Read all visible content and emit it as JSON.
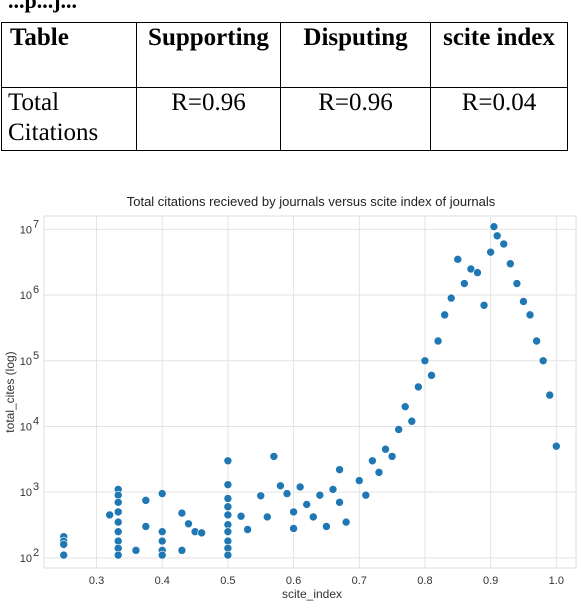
{
  "heading_fragment": "...p...j...",
  "table": {
    "headers": [
      "Table",
      "Supporting",
      "Disputing",
      "scite index"
    ],
    "rows": [
      {
        "label": "Total Citations",
        "supporting": "R=0.96",
        "disputing": "R=0.96",
        "scite_index": "R=0.04"
      }
    ]
  },
  "chart_data": {
    "type": "scatter",
    "title": "Total citations recieved by journals versus scite index of journals",
    "xlabel": "scite_index",
    "ylabel": "total_cites (log)",
    "xlim": [
      0.22,
      1.03
    ],
    "ylim": [
      70,
      16000000
    ],
    "yscale": "log",
    "grid": true,
    "x_ticks": [
      "0.3",
      "0.4",
      "0.5",
      "0.6",
      "0.7",
      "0.8",
      "0.9",
      "1.0"
    ],
    "y_ticks": [
      "10",
      "10",
      "10",
      "10",
      "10",
      "10"
    ],
    "y_tick_exponents": [
      "2",
      "3",
      "4",
      "5",
      "6",
      "7"
    ],
    "point_color": "#1f77b4",
    "points": [
      [
        0.25,
        210
      ],
      [
        0.25,
        180
      ],
      [
        0.25,
        160
      ],
      [
        0.25,
        110
      ],
      [
        0.32,
        450
      ],
      [
        0.333,
        1100
      ],
      [
        0.333,
        900
      ],
      [
        0.333,
        700
      ],
      [
        0.333,
        500
      ],
      [
        0.333,
        350
      ],
      [
        0.333,
        250
      ],
      [
        0.333,
        180
      ],
      [
        0.333,
        140
      ],
      [
        0.333,
        110
      ],
      [
        0.36,
        130
      ],
      [
        0.375,
        750
      ],
      [
        0.375,
        300
      ],
      [
        0.4,
        950
      ],
      [
        0.4,
        250
      ],
      [
        0.4,
        180
      ],
      [
        0.4,
        130
      ],
      [
        0.4,
        110
      ],
      [
        0.43,
        130
      ],
      [
        0.43,
        480
      ],
      [
        0.44,
        330
      ],
      [
        0.45,
        250
      ],
      [
        0.46,
        240
      ],
      [
        0.5,
        3000
      ],
      [
        0.5,
        1300
      ],
      [
        0.5,
        800
      ],
      [
        0.5,
        600
      ],
      [
        0.5,
        450
      ],
      [
        0.5,
        320
      ],
      [
        0.5,
        250
      ],
      [
        0.5,
        180
      ],
      [
        0.5,
        140
      ],
      [
        0.5,
        110
      ],
      [
        0.52,
        430
      ],
      [
        0.53,
        270
      ],
      [
        0.55,
        880
      ],
      [
        0.56,
        420
      ],
      [
        0.57,
        3500
      ],
      [
        0.58,
        1250
      ],
      [
        0.59,
        950
      ],
      [
        0.6,
        500
      ],
      [
        0.6,
        280
      ],
      [
        0.61,
        1200
      ],
      [
        0.62,
        650
      ],
      [
        0.63,
        420
      ],
      [
        0.64,
        900
      ],
      [
        0.65,
        300
      ],
      [
        0.66,
        1100
      ],
      [
        0.67,
        2200
      ],
      [
        0.67,
        700
      ],
      [
        0.68,
        350
      ],
      [
        0.7,
        1500
      ],
      [
        0.71,
        900
      ],
      [
        0.72,
        3000
      ],
      [
        0.73,
        2000
      ],
      [
        0.74,
        4500
      ],
      [
        0.75,
        3500
      ],
      [
        0.76,
        9000
      ],
      [
        0.77,
        20000
      ],
      [
        0.78,
        12000
      ],
      [
        0.79,
        40000
      ],
      [
        0.8,
        100000
      ],
      [
        0.81,
        60000
      ],
      [
        0.82,
        200000
      ],
      [
        0.83,
        500000
      ],
      [
        0.84,
        900000
      ],
      [
        0.85,
        3500000
      ],
      [
        0.86,
        1500000
      ],
      [
        0.87,
        2500000
      ],
      [
        0.88,
        2200000
      ],
      [
        0.89,
        700000
      ],
      [
        0.9,
        4500000
      ],
      [
        0.905,
        11000000
      ],
      [
        0.91,
        8000000
      ],
      [
        0.92,
        6000000
      ],
      [
        0.93,
        3000000
      ],
      [
        0.94,
        1500000
      ],
      [
        0.95,
        800000
      ],
      [
        0.96,
        500000
      ],
      [
        0.97,
        200000
      ],
      [
        0.98,
        100000
      ],
      [
        0.99,
        30000
      ],
      [
        1.0,
        5000
      ]
    ]
  }
}
